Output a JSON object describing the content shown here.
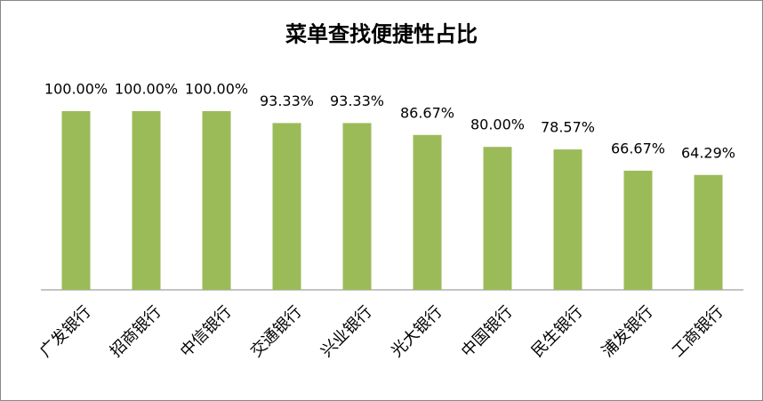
{
  "chart_data": {
    "type": "bar",
    "title": "菜单查找便捷性占比",
    "categories": [
      "广发银行",
      "招商银行",
      "中信银行",
      "交通银行",
      "兴业银行",
      "光大银行",
      "中国银行",
      "民生银行",
      "浦发银行",
      "工商银行"
    ],
    "values": [
      100,
      100,
      100,
      93.33,
      93.33,
      86.67,
      80,
      78.57,
      66.67,
      64.29
    ],
    "value_labels": [
      "100.00%",
      "100.00%",
      "100.00%",
      "93.33%",
      "93.33%",
      "86.67%",
      "80.00%",
      "78.57%",
      "66.67%",
      "64.29%"
    ],
    "color": "#9bbb59",
    "ylim": [
      0,
      100
    ]
  }
}
